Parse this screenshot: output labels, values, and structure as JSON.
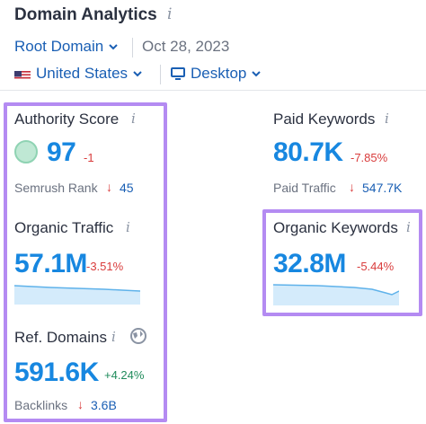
{
  "header": {
    "title": "Domain Analytics",
    "root_domain_label": "Root Domain",
    "date": "Oct 28, 2023",
    "country_label": "United States",
    "device_label": "Desktop"
  },
  "authority_score": {
    "label": "Authority Score",
    "value": "97",
    "change": "-1",
    "sub_label": "Semrush Rank",
    "sub_value": "45"
  },
  "organic_traffic": {
    "label": "Organic Traffic",
    "value": "57.1M",
    "change": "-3.51%"
  },
  "ref_domains": {
    "label": "Ref. Domains",
    "value": "591.6K",
    "change": "+4.24%",
    "sub_label": "Backlinks",
    "sub_value": "3.6B"
  },
  "paid_keywords": {
    "label": "Paid Keywords",
    "value": "80.7K",
    "change": "-7.85%",
    "sub_label": "Paid Traffic",
    "sub_value": "547.7K"
  },
  "organic_keywords": {
    "label": "Organic Keywords",
    "value": "32.8M",
    "change": "-5.44%"
  },
  "colors": {
    "accent": "#1787e0",
    "link": "#1a5fb4",
    "negative": "#d93c3c",
    "positive": "#1f8b5b",
    "highlight": "#b48bf2",
    "sparkline_fill": "#d4ebfb"
  }
}
